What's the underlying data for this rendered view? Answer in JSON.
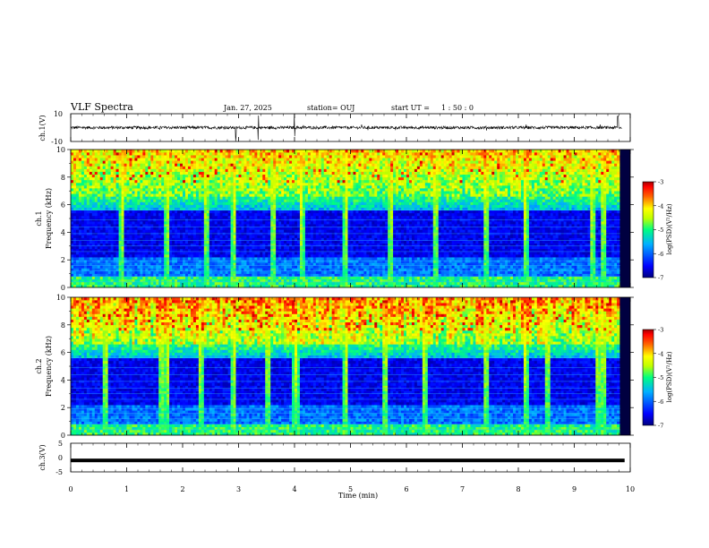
{
  "header": {
    "title": "VLF Spectra",
    "date": "Jan. 27, 2025",
    "station": "station= OUJ",
    "start_label": "start  UT =",
    "start_time": "1 : 50 : 0"
  },
  "chart_data": [
    {
      "type": "line",
      "panel": "ch1-waveform",
      "ylabel": "ch.1(V)",
      "ylim": [
        -10,
        10
      ],
      "yticks": [
        "10",
        "-10"
      ],
      "xlim": [
        0,
        10
      ],
      "baseline": 0,
      "description_values": {
        "typical_amplitude": 1.5,
        "spike_times_min": [
          2.95,
          3.35,
          4.0,
          9.78
        ]
      }
    },
    {
      "type": "heatmap",
      "panel": "ch1-spectrogram",
      "ylabel": "ch.1\nFrequency (kHz)",
      "ylabel_lines": [
        "ch.1",
        "Frequency (kHz)"
      ],
      "ylim": [
        0,
        10
      ],
      "yticks": [
        "0",
        "2",
        "4",
        "6",
        "8",
        "10"
      ],
      "xlim": [
        0,
        10
      ],
      "colorbar": {
        "label": "log(PSD)(V²/Hz)",
        "range": [
          -7,
          -3
        ],
        "ticks": [
          "-3",
          "-4",
          "-5",
          "-6",
          "-7"
        ]
      }
    },
    {
      "type": "heatmap",
      "panel": "ch2-spectrogram",
      "ylabel": "ch.2\nFrequency (kHz)",
      "ylabel_lines": [
        "ch.2",
        "Frequency (kHz)"
      ],
      "ylim": [
        0,
        10
      ],
      "yticks": [
        "0",
        "2",
        "4",
        "6",
        "8",
        "10"
      ],
      "xlim": [
        0,
        10
      ],
      "colorbar": {
        "label": "log(PSD)(V²/Hz)",
        "range": [
          -7,
          -3
        ],
        "ticks": [
          "-3",
          "-4",
          "-5",
          "-6",
          "-7"
        ]
      }
    },
    {
      "type": "line",
      "panel": "ch3-waveform",
      "ylabel": "ch.3(V)",
      "ylim": [
        -5,
        5
      ],
      "yticks": [
        "5",
        "0",
        "-5"
      ],
      "xlim": [
        0,
        9.9
      ],
      "value": -1
    }
  ],
  "x_axis": {
    "label": "Time (min)",
    "ticks": [
      "0",
      "1",
      "2",
      "3",
      "4",
      "5",
      "6",
      "7",
      "8",
      "9",
      "10"
    ]
  },
  "colors": {
    "colormap": [
      "#00007f",
      "#0000ff",
      "#00b0ff",
      "#00ff80",
      "#c0ff00",
      "#ffff00",
      "#ff8000",
      "#ff0000",
      "#7f0000"
    ]
  }
}
